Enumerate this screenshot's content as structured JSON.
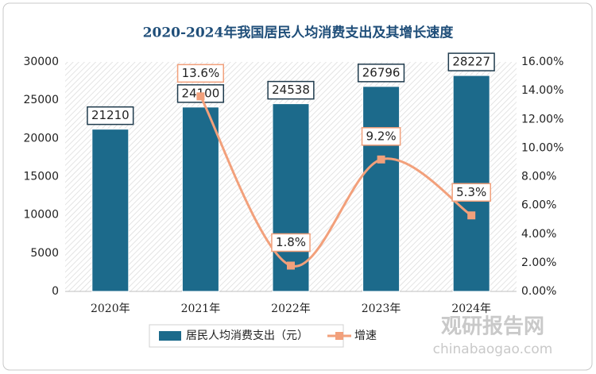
{
  "chart_data": {
    "type": "bar-line",
    "title": "2020-2024年我国居民人均消费支出及其增长速度",
    "categories": [
      "2020年",
      "2021年",
      "2022年",
      "2023年",
      "2024年"
    ],
    "series": [
      {
        "name": "居民人均消费支出（元）",
        "type": "bar",
        "color": "#1c6a8b",
        "axis": "y",
        "values": [
          21210,
          24100,
          24538,
          26796,
          28227
        ]
      },
      {
        "name": "增速",
        "type": "line",
        "color": "#f2a07b",
        "axis": "y2",
        "values": [
          null,
          13.6,
          1.8,
          9.2,
          5.3
        ],
        "value_labels": [
          null,
          "13.6%",
          "1.8%",
          "9.2%",
          "5.3%"
        ]
      }
    ],
    "ylim": [
      0,
      30000
    ],
    "yticks": [
      0,
      5000,
      10000,
      15000,
      20000,
      25000,
      30000
    ],
    "y2lim": [
      0,
      16
    ],
    "y2ticks": [
      {
        "value": 0,
        "label": "0.00%"
      },
      {
        "value": 2,
        "label": "2.00%"
      },
      {
        "value": 4,
        "label": "4.00%"
      },
      {
        "value": 6,
        "label": "6.00%"
      },
      {
        "value": 8,
        "label": "8.00%"
      },
      {
        "value": 10,
        "label": "10.00%"
      },
      {
        "value": 12,
        "label": "12.00%"
      },
      {
        "value": 14,
        "label": "14.00%"
      },
      {
        "value": 16,
        "label": "16.00%"
      }
    ],
    "grid": false,
    "legend": "bottom"
  },
  "watermark": {
    "name": "观研报告网",
    "url": "chinabaogao.com"
  }
}
